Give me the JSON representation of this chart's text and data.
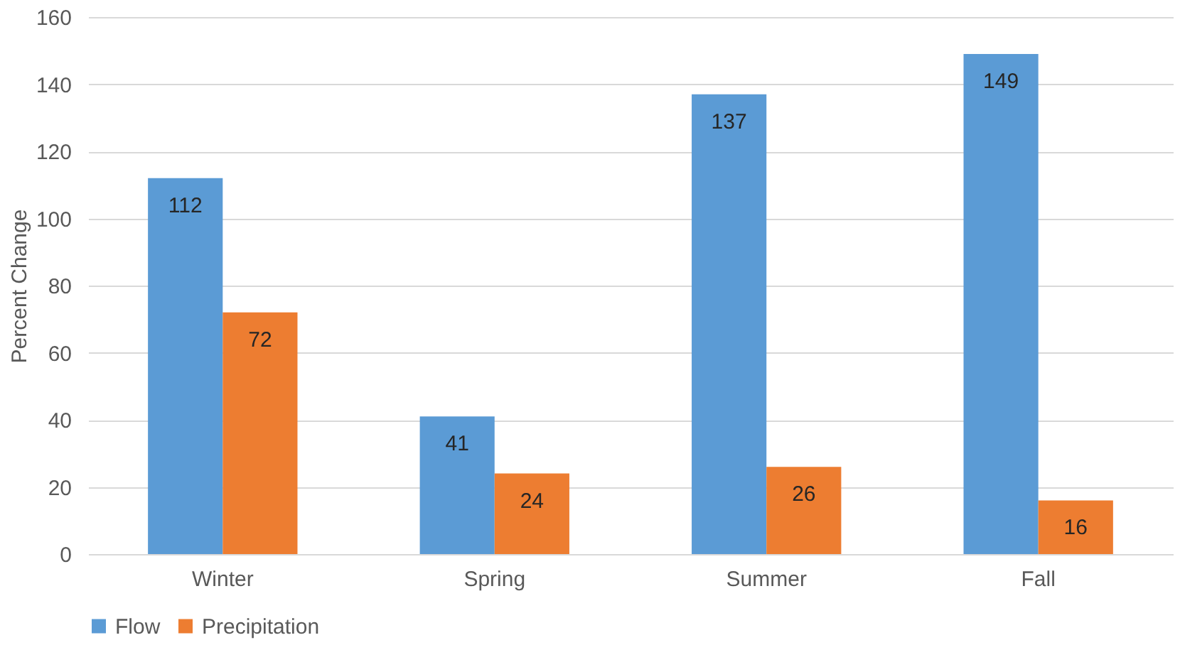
{
  "chart_data": {
    "type": "bar",
    "ylabel": "Percent Change",
    "categories": [
      "Winter",
      "Spring",
      "Summer",
      "Fall"
    ],
    "series": [
      {
        "name": "Flow",
        "color": "#5b9bd5",
        "values": [
          112,
          41,
          137,
          149
        ]
      },
      {
        "name": "Precipitation",
        "color": "#ed7d31",
        "values": [
          72,
          24,
          26,
          16
        ]
      }
    ],
    "ylim": [
      0,
      160
    ],
    "yticks": [
      0,
      20,
      40,
      60,
      80,
      100,
      120,
      140,
      160
    ],
    "grid": "y",
    "legend": "bottom",
    "data_labels": true
  }
}
